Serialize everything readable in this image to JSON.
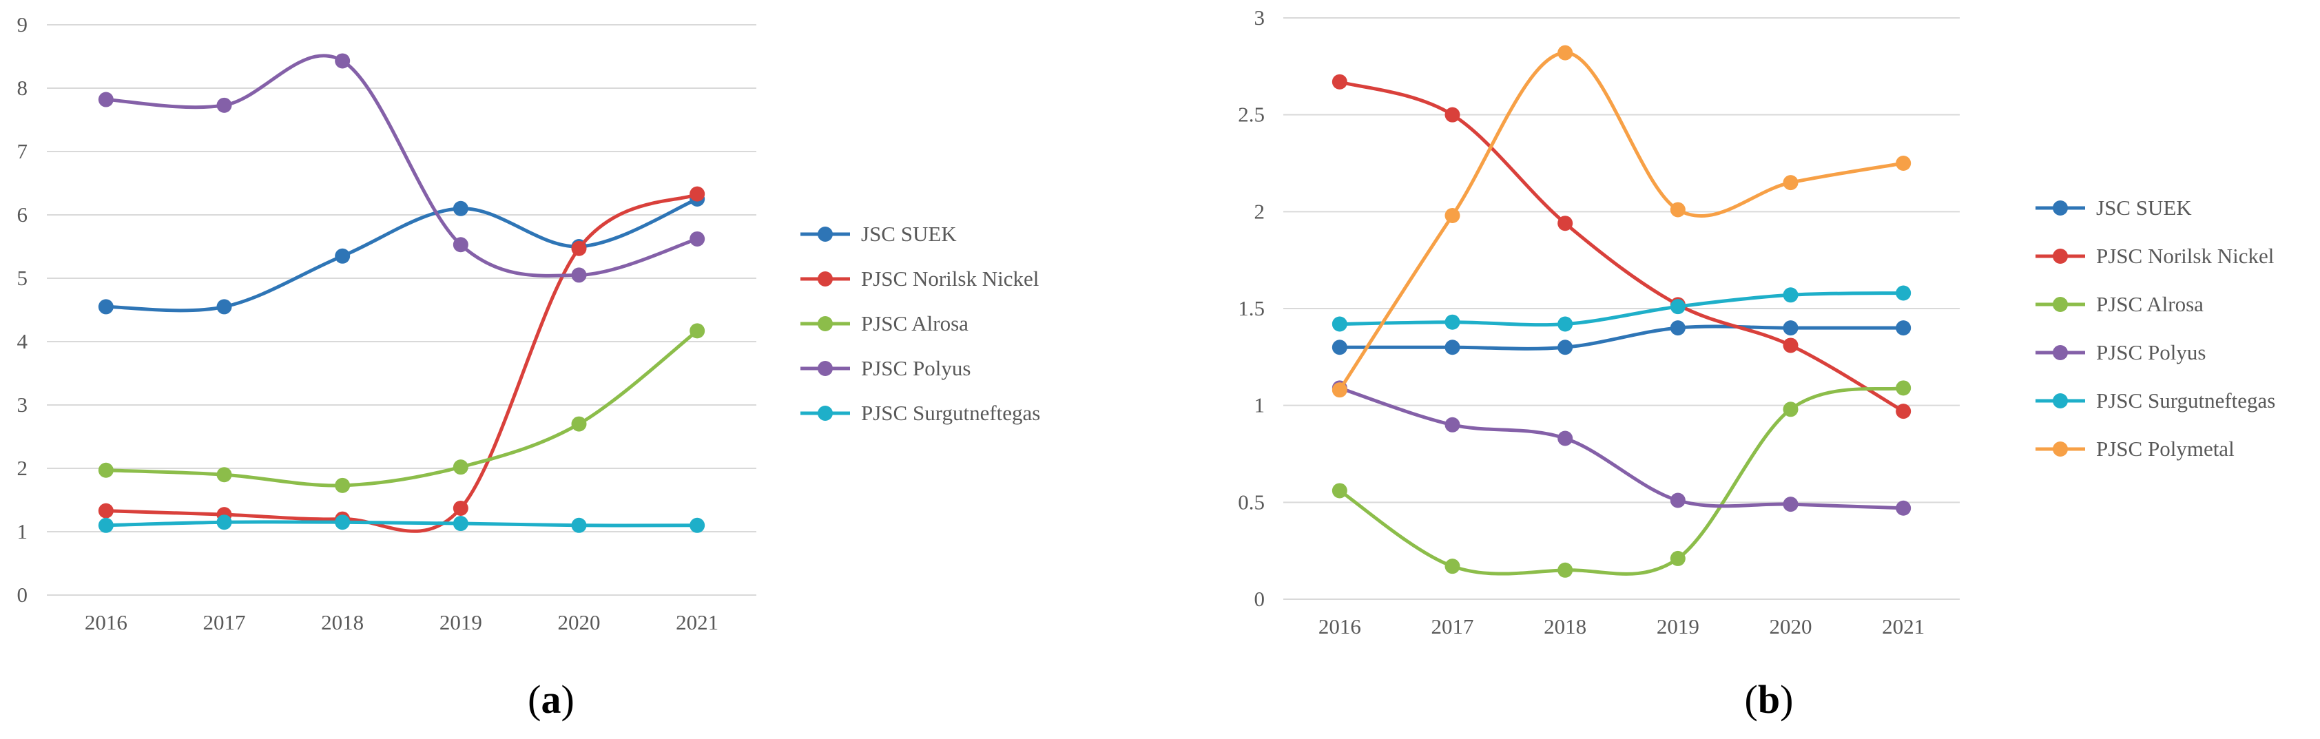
{
  "chart_data": [
    {
      "type": "line",
      "panel_label": "a",
      "categories": [
        "2016",
        "2017",
        "2018",
        "2019",
        "2020",
        "2021"
      ],
      "ylim": [
        0,
        9
      ],
      "yticks": [
        "0",
        "1",
        "2",
        "3",
        "4",
        "5",
        "6",
        "7",
        "8",
        "9"
      ],
      "grid": true,
      "smooth": true,
      "legend_position": "right",
      "series": [
        {
          "name": "JSC SUEK",
          "color": "#2E75B6",
          "values": [
            4.55,
            4.55,
            5.35,
            6.1,
            5.5,
            6.25
          ]
        },
        {
          "name": "PJSC Norilsk Nickel",
          "color": "#D9403B",
          "values": [
            1.33,
            1.27,
            1.2,
            1.37,
            5.47,
            6.33
          ]
        },
        {
          "name": "PJSC Alrosa",
          "color": "#8CBD4A",
          "values": [
            1.97,
            1.9,
            1.73,
            2.02,
            2.7,
            4.17
          ]
        },
        {
          "name": "PJSC Polyus",
          "color": "#8460A8",
          "values": [
            7.82,
            7.73,
            8.43,
            5.53,
            5.05,
            5.62
          ]
        },
        {
          "name": "PJSC Surgutneftegas",
          "color": "#1EAFC9",
          "values": [
            1.1,
            1.15,
            1.15,
            1.13,
            1.1,
            1.1
          ]
        }
      ]
    },
    {
      "type": "line",
      "panel_label": "b",
      "categories": [
        "2016",
        "2017",
        "2018",
        "2019",
        "2020",
        "2021"
      ],
      "ylim": [
        0,
        3
      ],
      "yticks": [
        "0",
        "0.5",
        "1",
        "1.5",
        "2",
        "2.5",
        "3"
      ],
      "grid": true,
      "smooth": true,
      "legend_position": "right",
      "series": [
        {
          "name": "JSC SUEK",
          "color": "#2E75B6",
          "values": [
            1.3,
            1.3,
            1.3,
            1.4,
            1.4,
            1.4
          ]
        },
        {
          "name": "PJSC Norilsk Nickel",
          "color": "#D9403B",
          "values": [
            2.67,
            2.5,
            1.94,
            1.52,
            1.31,
            0.97
          ]
        },
        {
          "name": "PJSC Alrosa",
          "color": "#8CBD4A",
          "values": [
            0.56,
            0.17,
            0.15,
            0.21,
            0.98,
            1.09
          ]
        },
        {
          "name": "PJSC Polyus",
          "color": "#8460A8",
          "values": [
            1.09,
            0.9,
            0.83,
            0.51,
            0.49,
            0.47
          ]
        },
        {
          "name": "PJSC Surgutneftegas",
          "color": "#1EAFC9",
          "values": [
            1.42,
            1.43,
            1.42,
            1.51,
            1.57,
            1.58
          ]
        },
        {
          "name": "PJSC Polymetal",
          "color": "#F7A046",
          "values": [
            1.08,
            1.98,
            2.82,
            2.01,
            2.15,
            2.25
          ]
        }
      ]
    }
  ]
}
